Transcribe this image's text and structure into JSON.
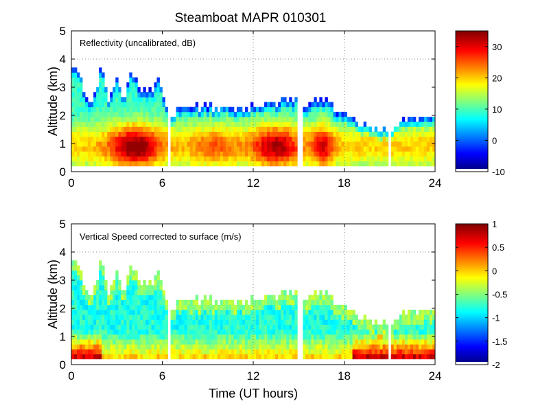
{
  "title": "Steamboat MAPR 010301",
  "chart_data": [
    {
      "type": "heatmap",
      "panel": "reflectivity",
      "annotation": "Reflectivity (uncalibrated, dB)",
      "ylabel": "Altitude (km)",
      "xlabel": "",
      "xlim": [
        0,
        24
      ],
      "ylim": [
        0,
        5
      ],
      "xticks": [
        "0",
        "6",
        "12",
        "18",
        "24"
      ],
      "yticks": [
        "0",
        "1",
        "2",
        "3",
        "4",
        "5"
      ],
      "colorbar": {
        "range": [
          -10,
          35
        ],
        "ticks": [
          "-10",
          "0",
          "10",
          "20",
          "30"
        ]
      }
    },
    {
      "type": "heatmap",
      "panel": "vertical-speed",
      "annotation": "Vertical Speed corrected to surface (m/s)",
      "ylabel": "Altitude (km)",
      "xlabel": "Time (UT hours)",
      "xlim": [
        0,
        24
      ],
      "ylim": [
        0,
        5
      ],
      "xticks": [
        "0",
        "6",
        "12",
        "18",
        "24"
      ],
      "yticks": [
        "0",
        "1",
        "2",
        "3",
        "4",
        "5"
      ],
      "colorbar": {
        "range": [
          -2,
          1
        ],
        "ticks": [
          "-2",
          "-1.5",
          "-1",
          "-0.5",
          "0",
          "0.5",
          "1"
        ]
      }
    }
  ],
  "echo_top_km": [
    [
      0,
      3.8
    ],
    [
      0.5,
      3.6
    ],
    [
      1,
      2.6
    ],
    [
      1.5,
      2.6
    ],
    [
      2,
      3.9
    ],
    [
      2.5,
      2.4
    ],
    [
      3,
      3.3
    ],
    [
      3.5,
      2.6
    ],
    [
      4,
      3.6
    ],
    [
      4.5,
      3.0
    ],
    [
      5,
      2.8
    ],
    [
      5.5,
      3.0
    ],
    [
      5.8,
      3.5
    ],
    [
      6.2,
      2.3
    ],
    [
      6.6,
      1.9
    ],
    [
      7,
      2.3
    ],
    [
      8,
      2.3
    ],
    [
      9,
      2.3
    ],
    [
      10,
      2.3
    ],
    [
      11,
      2.2
    ],
    [
      12,
      2.3
    ],
    [
      12.5,
      2.4
    ],
    [
      13,
      2.5
    ],
    [
      13.5,
      2.4
    ],
    [
      14,
      2.6
    ],
    [
      14.5,
      2.5
    ],
    [
      15,
      2.6
    ],
    [
      15.4,
      2.3
    ],
    [
      16,
      2.6
    ],
    [
      17,
      2.5
    ],
    [
      17.5,
      2.1
    ],
    [
      18,
      2.0
    ],
    [
      19,
      1.7
    ],
    [
      20,
      1.5
    ],
    [
      21,
      1.4
    ],
    [
      22,
      1.9
    ],
    [
      23,
      1.8
    ],
    [
      24,
      2.0
    ]
  ],
  "data_gaps_hours": [
    [
      6.4,
      6.6
    ],
    [
      15.0,
      15.2
    ],
    [
      21.0,
      21.1
    ]
  ]
}
